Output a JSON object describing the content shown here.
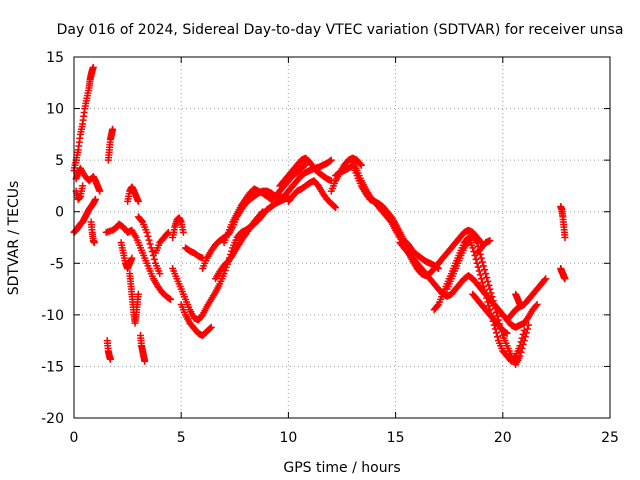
{
  "chart_data": {
    "type": "scatter",
    "title": "Day 016 of 2024, Sidereal Day-to-day VTEC variation (SDTVAR) for receiver unsa",
    "xlabel": "GPS time / hours",
    "ylabel": "SDTVAR / TECUs",
    "xlim": [
      0,
      25
    ],
    "ylim": [
      -20,
      15
    ],
    "xticks": [
      0,
      5,
      10,
      15,
      20,
      25
    ],
    "yticks": [
      -20,
      -15,
      -10,
      -5,
      0,
      5,
      10,
      15
    ],
    "xtick_labels": [
      "0",
      "5",
      "10",
      "15",
      "20",
      "25"
    ],
    "ytick_labels": [
      "-20",
      "-15",
      "-10",
      "-5",
      "0",
      "5",
      "10",
      "15"
    ],
    "grid": true,
    "marker": "+",
    "color": "#ff0000",
    "series": [
      {
        "name": "s1",
        "x": [
          0.0,
          0.1,
          0.2,
          0.3,
          0.4,
          0.5,
          0.6,
          0.7,
          0.75,
          0.8,
          0.85,
          0.9
        ],
        "y": [
          4.0,
          5.0,
          6.0,
          7.5,
          8.5,
          10.0,
          11.0,
          12.0,
          12.8,
          13.3,
          13.7,
          14.0
        ]
      },
      {
        "name": "s2",
        "x": [
          0.1,
          0.2,
          0.3,
          0.5,
          0.7,
          0.9,
          1.0,
          1.1,
          1.2
        ],
        "y": [
          3.2,
          3.8,
          4.2,
          3.5,
          3.0,
          3.4,
          3.0,
          2.5,
          2.0
        ]
      },
      {
        "name": "s3",
        "x": [
          0.0,
          0.1,
          0.2,
          0.3,
          0.4,
          0.5,
          0.6,
          0.7,
          0.8,
          0.9,
          1.0
        ],
        "y": [
          -2.0,
          -1.8,
          -1.5,
          -1.2,
          -1.0,
          -0.6,
          -0.2,
          0.2,
          0.5,
          0.8,
          1.2
        ]
      },
      {
        "name": "s4",
        "x": [
          0.1,
          0.2,
          0.3,
          0.4
        ],
        "y": [
          2.0,
          1.2,
          1.5,
          2.5
        ]
      },
      {
        "name": "s5",
        "x": [
          0.8,
          0.85,
          0.9,
          0.95
        ],
        "y": [
          -1.0,
          -2.0,
          -2.8,
          -3.0
        ]
      },
      {
        "name": "s6",
        "x": [
          1.6,
          1.65,
          1.7,
          1.75,
          1.8
        ],
        "y": [
          5.0,
          6.0,
          7.0,
          7.5,
          8.0
        ]
      },
      {
        "name": "s7",
        "x": [
          1.55,
          1.6,
          1.65,
          1.7
        ],
        "y": [
          -12.5,
          -13.5,
          -14.0,
          -14.3
        ]
      },
      {
        "name": "s8",
        "x": [
          1.5,
          1.8,
          2.0,
          2.1,
          2.3,
          2.5,
          2.7,
          2.9,
          3.1,
          3.3,
          3.5,
          3.7,
          3.9,
          4.1,
          4.3,
          4.5
        ],
        "y": [
          -2.0,
          -1.8,
          -1.5,
          -1.2,
          -1.5,
          -2.0,
          -1.8,
          -2.5,
          -3.5,
          -4.5,
          -5.5,
          -6.5,
          -7.2,
          -7.8,
          -8.2,
          -8.5
        ]
      },
      {
        "name": "s9",
        "x": [
          2.2,
          2.3,
          2.4,
          2.5,
          2.6,
          2.7
        ],
        "y": [
          -3.0,
          -4.0,
          -5.0,
          -5.5,
          -5.0,
          -4.5
        ]
      },
      {
        "name": "s10",
        "x": [
          2.5,
          2.6,
          2.7,
          2.8,
          2.9,
          3.0
        ],
        "y": [
          1.0,
          2.0,
          2.4,
          2.0,
          1.5,
          1.0
        ]
      },
      {
        "name": "s11",
        "x": [
          2.6,
          2.65,
          2.7,
          2.75,
          2.8,
          2.85,
          2.9,
          2.95,
          3.0
        ],
        "y": [
          -6.0,
          -7.0,
          -8.0,
          -9.0,
          -10.0,
          -10.8,
          -10.0,
          -9.0,
          -8.0
        ]
      },
      {
        "name": "s12",
        "x": [
          3.0,
          3.2,
          3.4,
          3.6,
          3.8,
          4.0
        ],
        "y": [
          -0.5,
          -1.0,
          -2.0,
          -3.5,
          -5.0,
          -6.0
        ]
      },
      {
        "name": "s13",
        "x": [
          3.1,
          3.15,
          3.2,
          3.25,
          3.3
        ],
        "y": [
          -12.0,
          -13.0,
          -13.5,
          -14.0,
          -14.5
        ]
      },
      {
        "name": "s14",
        "x": [
          3.8,
          4.0,
          4.2,
          4.4
        ],
        "y": [
          -4.0,
          -3.0,
          -2.5,
          -2.0
        ]
      },
      {
        "name": "s15",
        "x": [
          4.6,
          4.7,
          4.8,
          4.9,
          5.0,
          5.1
        ],
        "y": [
          -2.5,
          -1.5,
          -0.8,
          -0.6,
          -1.0,
          -2.0
        ]
      },
      {
        "name": "s16",
        "x": [
          4.6,
          4.8,
          5.0,
          5.2,
          5.4,
          5.6,
          5.8,
          6.0,
          6.2,
          6.4,
          6.6,
          6.8,
          7.0,
          7.2,
          7.4,
          7.6,
          7.8,
          8.0,
          8.2,
          8.4,
          8.6,
          8.8,
          9.0,
          9.2,
          9.4,
          9.6,
          9.8,
          10.0
        ],
        "y": [
          -5.5,
          -6.5,
          -7.5,
          -8.5,
          -9.5,
          -10.3,
          -10.5,
          -10.0,
          -9.2,
          -8.5,
          -7.8,
          -7.0,
          -6.0,
          -4.8,
          -3.5,
          -2.5,
          -2.0,
          -1.8,
          -1.5,
          -1.2,
          -0.8,
          -0.3,
          0.2,
          0.5,
          0.8,
          1.0,
          1.2,
          1.5
        ]
      },
      {
        "name": "s17",
        "x": [
          5.0,
          5.2,
          5.4,
          5.6,
          5.8,
          6.0,
          6.2,
          6.4
        ],
        "y": [
          -9.0,
          -10.0,
          -10.8,
          -11.3,
          -11.8,
          -12.0,
          -11.6,
          -11.2
        ]
      },
      {
        "name": "s18",
        "x": [
          5.2,
          5.4,
          5.6,
          5.8,
          6.0
        ],
        "y": [
          -3.5,
          -3.8,
          -4.0,
          -4.3,
          -4.5
        ]
      },
      {
        "name": "s19",
        "x": [
          6.0,
          6.2,
          6.4,
          6.6,
          6.8,
          7.0,
          7.2,
          7.4,
          7.6,
          7.8,
          8.0,
          8.2,
          8.4,
          8.6,
          8.8,
          9.0,
          9.2,
          9.4,
          9.6,
          9.8,
          10.0,
          10.2,
          10.4,
          10.6,
          10.8,
          11.0,
          11.2,
          11.4,
          11.6,
          11.8,
          12.0
        ],
        "y": [
          -5.5,
          -4.5,
          -3.8,
          -3.2,
          -2.8,
          -2.5,
          -2.2,
          -1.5,
          -0.5,
          0.2,
          0.8,
          1.2,
          1.5,
          1.8,
          2.0,
          2.0,
          1.8,
          1.5,
          1.3,
          1.5,
          2.0,
          2.5,
          3.0,
          3.5,
          3.8,
          4.0,
          4.2,
          4.3,
          4.5,
          4.7,
          5.0
        ]
      },
      {
        "name": "s20",
        "x": [
          7.0,
          7.2,
          7.4,
          7.6,
          7.8,
          8.0,
          8.2,
          8.4,
          8.6,
          8.8,
          9.0,
          9.2,
          9.4,
          9.6,
          9.8,
          10.0,
          10.2,
          10.4,
          10.6,
          10.8
        ],
        "y": [
          -3.0,
          -2.0,
          -1.0,
          -0.2,
          0.6,
          1.2,
          1.8,
          2.2,
          2.0,
          1.8,
          1.5,
          1.2,
          1.5,
          2.0,
          2.5,
          3.0,
          3.5,
          3.8,
          4.2,
          4.6
        ]
      },
      {
        "name": "s21",
        "x": [
          6.6,
          6.8,
          7.0,
          7.2,
          7.4,
          7.6,
          7.8,
          8.0,
          8.2,
          8.4,
          8.6,
          8.8
        ],
        "y": [
          -6.5,
          -5.8,
          -5.2,
          -4.8,
          -4.2,
          -3.5,
          -2.8,
          -2.2,
          -1.6,
          -1.0,
          -0.5,
          0.0
        ]
      },
      {
        "name": "s22",
        "x": [
          9.6,
          9.8,
          10.0,
          10.2,
          10.4,
          10.6,
          10.8,
          11.0,
          11.2,
          11.4,
          11.6,
          11.8,
          12.0
        ],
        "y": [
          2.5,
          3.0,
          3.5,
          4.0,
          4.5,
          5.0,
          5.2,
          4.8,
          4.2,
          3.8,
          3.5,
          3.2,
          3.0
        ]
      },
      {
        "name": "s23",
        "x": [
          10.0,
          10.2,
          10.4,
          10.6,
          10.8,
          11.0,
          11.2,
          11.4,
          11.6,
          11.8,
          12.0,
          12.2
        ],
        "y": [
          1.0,
          1.5,
          2.0,
          2.2,
          2.5,
          2.8,
          3.0,
          2.5,
          1.8,
          1.2,
          0.8,
          0.4
        ]
      },
      {
        "name": "s24",
        "x": [
          12.0,
          12.2,
          12.4,
          12.6,
          12.8,
          13.0,
          13.2,
          13.4
        ],
        "y": [
          2.0,
          3.0,
          3.8,
          4.5,
          5.0,
          5.2,
          5.0,
          4.5
        ]
      },
      {
        "name": "s25",
        "x": [
          12.2,
          12.4,
          12.6,
          12.8,
          13.0,
          13.2,
          13.4,
          13.6,
          13.8,
          14.0,
          14.2,
          14.4,
          14.6,
          14.8,
          15.0,
          15.2,
          15.4,
          15.6,
          15.8,
          16.0,
          16.2,
          16.4,
          16.6,
          16.8,
          17.0
        ],
        "y": [
          3.5,
          3.8,
          4.0,
          4.2,
          4.5,
          3.5,
          2.5,
          1.8,
          1.2,
          1.0,
          0.8,
          0.5,
          0.0,
          -0.5,
          -1.2,
          -2.0,
          -2.8,
          -3.2,
          -3.8,
          -4.2,
          -4.5,
          -4.8,
          -5.0,
          -5.2,
          -5.5
        ]
      },
      {
        "name": "s26",
        "x": [
          13.0,
          13.2,
          13.4,
          13.6,
          13.8,
          14.0,
          14.2,
          14.4,
          14.6,
          14.8,
          15.0,
          15.2,
          15.4,
          15.6,
          15.8,
          16.0,
          16.2,
          16.4,
          16.6,
          16.8,
          17.0,
          17.2,
          17.4,
          17.6,
          17.8,
          18.0,
          18.2,
          18.4,
          18.6,
          18.8,
          19.0
        ],
        "y": [
          4.8,
          4.0,
          3.0,
          2.2,
          1.5,
          1.0,
          0.5,
          0.0,
          -0.5,
          -1.0,
          -1.8,
          -2.5,
          -3.2,
          -4.0,
          -4.8,
          -5.5,
          -6.0,
          -6.2,
          -6.0,
          -5.5,
          -5.0,
          -4.5,
          -4.0,
          -3.5,
          -3.0,
          -2.5,
          -2.0,
          -1.8,
          -2.0,
          -2.5,
          -3.0
        ]
      },
      {
        "name": "s27",
        "x": [
          15.2,
          15.4,
          15.6,
          15.8,
          16.0,
          16.2,
          16.4,
          16.6,
          16.8,
          17.0,
          17.2,
          17.4,
          17.6,
          17.8,
          18.0,
          18.2,
          18.4,
          18.6,
          18.8,
          19.0,
          19.2,
          19.4,
          19.6,
          19.8,
          20.0,
          20.2,
          20.4,
          20.6,
          20.8,
          21.0,
          21.2,
          21.4,
          21.6
        ],
        "y": [
          -3.0,
          -3.5,
          -4.0,
          -4.5,
          -5.0,
          -5.5,
          -6.0,
          -6.5,
          -7.0,
          -7.5,
          -8.0,
          -8.2,
          -8.0,
          -7.5,
          -7.0,
          -6.5,
          -6.2,
          -6.5,
          -7.0,
          -7.5,
          -8.0,
          -8.5,
          -9.0,
          -9.5,
          -10.0,
          -10.5,
          -11.0,
          -11.2,
          -11.0,
          -10.8,
          -10.2,
          -9.5,
          -9.0
        ]
      },
      {
        "name": "s28",
        "x": [
          16.8,
          17.0,
          17.2,
          17.4,
          17.6,
          17.8,
          18.0,
          18.2,
          18.4,
          18.6,
          18.8,
          19.0,
          19.2,
          19.4,
          19.6,
          19.8,
          20.0,
          20.2,
          20.4,
          20.6,
          20.8,
          21.0
        ],
        "y": [
          -9.5,
          -9.0,
          -8.0,
          -7.0,
          -6.0,
          -5.0,
          -4.0,
          -3.0,
          -2.5,
          -3.5,
          -5.0,
          -6.5,
          -8.0,
          -9.5,
          -11.0,
          -12.5,
          -13.5,
          -14.0,
          -14.5,
          -14.0,
          -13.0,
          -11.5
        ]
      },
      {
        "name": "s29",
        "x": [
          17.4,
          17.6,
          17.8,
          18.0,
          18.2,
          18.4,
          18.6,
          18.8,
          19.0,
          19.2,
          19.4,
          19.6,
          19.8,
          20.0,
          20.2,
          20.4,
          20.6,
          20.8,
          21.0,
          21.2
        ],
        "y": [
          -7.5,
          -6.5,
          -5.5,
          -4.5,
          -3.5,
          -2.8,
          -2.2,
          -3.0,
          -4.5,
          -6.0,
          -7.5,
          -9.0,
          -10.5,
          -12.0,
          -13.0,
          -14.0,
          -14.8,
          -14.0,
          -12.5,
          -11.0
        ]
      },
      {
        "name": "s30",
        "x": [
          18.6,
          18.8,
          19.0,
          19.2,
          19.4,
          19.6,
          19.8,
          20.0,
          20.2
        ],
        "y": [
          -8.0,
          -8.5,
          -9.0,
          -9.5,
          -10.0,
          -10.5,
          -11.0,
          -11.5,
          -11.8
        ]
      },
      {
        "name": "s31",
        "x": [
          18.8,
          19.0,
          19.2,
          19.4
        ],
        "y": [
          -4.0,
          -3.5,
          -3.0,
          -2.8
        ]
      },
      {
        "name": "s32",
        "x": [
          20.2,
          20.4,
          20.6,
          20.8,
          21.0,
          21.2,
          21.4,
          21.6,
          21.8,
          22.0
        ],
        "y": [
          -10.5,
          -10.0,
          -9.5,
          -9.2,
          -9.0,
          -8.5,
          -8.0,
          -7.5,
          -7.0,
          -6.5
        ]
      },
      {
        "name": "s33",
        "x": [
          20.6,
          20.7,
          20.8
        ],
        "y": [
          -8.0,
          -8.5,
          -9.0
        ]
      },
      {
        "name": "s34",
        "x": [
          22.7,
          22.75,
          22.8,
          22.85,
          22.9
        ],
        "y": [
          0.5,
          0.2,
          -0.5,
          -1.5,
          -2.5
        ]
      },
      {
        "name": "s35",
        "x": [
          22.7,
          22.75,
          22.8,
          22.85,
          22.9
        ],
        "y": [
          -5.5,
          -5.8,
          -6.0,
          -6.3,
          -6.5
        ]
      }
    ]
  }
}
